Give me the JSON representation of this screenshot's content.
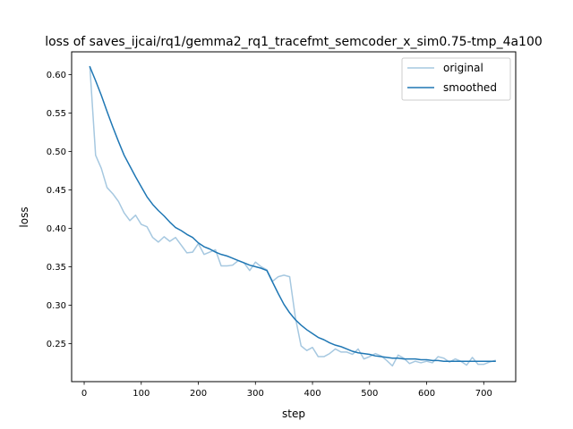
{
  "chart_data": {
    "type": "line",
    "title": "loss of saves_ijcai/rq1/gemma2_rq1_tracefmt_semcoder_x_sim0.75-tmp_4a100",
    "xlabel": "step",
    "ylabel": "loss",
    "xlim": [
      -22,
      756
    ],
    "ylim": [
      0.2005,
      0.6295
    ],
    "xticks": [
      0,
      100,
      200,
      300,
      400,
      500,
      600,
      700
    ],
    "yticks": [
      0.25,
      0.3,
      0.35,
      0.4,
      0.45,
      0.5,
      0.55,
      0.6
    ],
    "ytick_labels": [
      "0.25",
      "0.30",
      "0.35",
      "0.40",
      "0.45",
      "0.50",
      "0.55",
      "0.60"
    ],
    "grid": false,
    "legend": "top-right",
    "x": [
      10,
      20,
      30,
      40,
      50,
      60,
      70,
      80,
      90,
      100,
      110,
      120,
      130,
      140,
      150,
      160,
      170,
      180,
      190,
      200,
      210,
      220,
      230,
      240,
      250,
      260,
      270,
      280,
      290,
      300,
      310,
      320,
      330,
      340,
      350,
      360,
      370,
      380,
      390,
      400,
      410,
      420,
      430,
      440,
      450,
      460,
      470,
      480,
      490,
      500,
      510,
      520,
      530,
      540,
      550,
      560,
      570,
      580,
      590,
      600,
      610,
      620,
      630,
      640,
      650,
      660,
      670,
      680,
      690,
      700,
      710,
      720
    ],
    "series": [
      {
        "name": "original",
        "color": "#a6c8e0",
        "values": [
          0.61,
          0.495,
          0.478,
          0.453,
          0.445,
          0.435,
          0.42,
          0.41,
          0.417,
          0.405,
          0.402,
          0.388,
          0.382,
          0.389,
          0.383,
          0.388,
          0.378,
          0.368,
          0.369,
          0.38,
          0.366,
          0.369,
          0.372,
          0.351,
          0.351,
          0.352,
          0.358,
          0.355,
          0.345,
          0.356,
          0.35,
          0.346,
          0.331,
          0.337,
          0.339,
          0.337,
          0.284,
          0.247,
          0.241,
          0.245,
          0.233,
          0.233,
          0.237,
          0.243,
          0.239,
          0.239,
          0.236,
          0.243,
          0.23,
          0.233,
          0.237,
          0.234,
          0.228,
          0.221,
          0.235,
          0.231,
          0.224,
          0.227,
          0.225,
          0.227,
          0.225,
          0.233,
          0.231,
          0.226,
          0.23,
          0.227,
          0.222,
          0.232,
          0.223,
          0.223,
          0.226,
          0.228
        ]
      },
      {
        "name": "smoothed",
        "color": "#1f77b4",
        "values": [
          0.61,
          0.592,
          0.573,
          0.552,
          0.532,
          0.513,
          0.495,
          0.481,
          0.467,
          0.454,
          0.441,
          0.431,
          0.423,
          0.416,
          0.408,
          0.401,
          0.397,
          0.392,
          0.388,
          0.381,
          0.376,
          0.373,
          0.369,
          0.366,
          0.364,
          0.361,
          0.358,
          0.355,
          0.352,
          0.35,
          0.348,
          0.345,
          0.33,
          0.315,
          0.301,
          0.29,
          0.281,
          0.274,
          0.268,
          0.263,
          0.258,
          0.255,
          0.251,
          0.248,
          0.246,
          0.243,
          0.24,
          0.238,
          0.237,
          0.236,
          0.234,
          0.233,
          0.232,
          0.231,
          0.231,
          0.23,
          0.23,
          0.23,
          0.229,
          0.229,
          0.228,
          0.228,
          0.227,
          0.227,
          0.227,
          0.227,
          0.227,
          0.227,
          0.227,
          0.227,
          0.227,
          0.227
        ]
      }
    ]
  }
}
